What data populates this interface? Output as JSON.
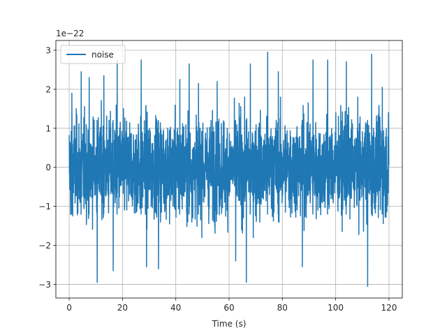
{
  "chart_data": {
    "type": "line",
    "title": "",
    "xlabel": "Time (s)",
    "ylabel": "",
    "y_offset_label": "1e−22",
    "xlim": [
      -5,
      125
    ],
    "ylim": [
      -3.35,
      3.25
    ],
    "x_ticks": [
      0,
      20,
      40,
      60,
      80,
      100,
      120
    ],
    "x_tick_labels": [
      "0",
      "20",
      "40",
      "60",
      "80",
      "100",
      "120"
    ],
    "y_ticks": [
      -3,
      -2,
      -1,
      0,
      1,
      2,
      3
    ],
    "y_tick_labels": [
      "−3",
      "−2",
      "−1",
      "0",
      "1",
      "2",
      "3"
    ],
    "grid": true,
    "legend_position": "top-left",
    "series": [
      {
        "name": "noise",
        "color": "#1f77b4",
        "x_range": [
          0,
          120
        ],
        "value_scale": "1e-22",
        "y_min": -3.1,
        "y_max": 2.95,
        "description_values": {
          "typical_abs_max": 1.5,
          "peak_values": [
            {
              "x": 1,
              "y": 1.9
            },
            {
              "x": 4.5,
              "y": 2.45
            },
            {
              "x": 7.5,
              "y": 2.3
            },
            {
              "x": 10.5,
              "y": -2.95
            },
            {
              "x": 13,
              "y": 2.35
            },
            {
              "x": 16.5,
              "y": -2.65
            },
            {
              "x": 18,
              "y": 2.75
            },
            {
              "x": 27,
              "y": 2.75
            },
            {
              "x": 29,
              "y": -2.55
            },
            {
              "x": 33.5,
              "y": -2.6
            },
            {
              "x": 41.5,
              "y": 2.25
            },
            {
              "x": 45,
              "y": 2.65
            },
            {
              "x": 48.5,
              "y": 2.15
            },
            {
              "x": 55.5,
              "y": 2.2
            },
            {
              "x": 62.5,
              "y": -2.4
            },
            {
              "x": 66.5,
              "y": -2.95
            },
            {
              "x": 68,
              "y": 2.65
            },
            {
              "x": 74.5,
              "y": 2.95
            },
            {
              "x": 78.5,
              "y": 2.45
            },
            {
              "x": 87.5,
              "y": -2.55
            },
            {
              "x": 91.5,
              "y": 2.75
            },
            {
              "x": 97,
              "y": 2.75
            },
            {
              "x": 104,
              "y": 2.7
            },
            {
              "x": 112,
              "y": -3.05
            },
            {
              "x": 113.5,
              "y": 2.9
            },
            {
              "x": 117.5,
              "y": 2.05
            }
          ]
        }
      }
    ]
  }
}
